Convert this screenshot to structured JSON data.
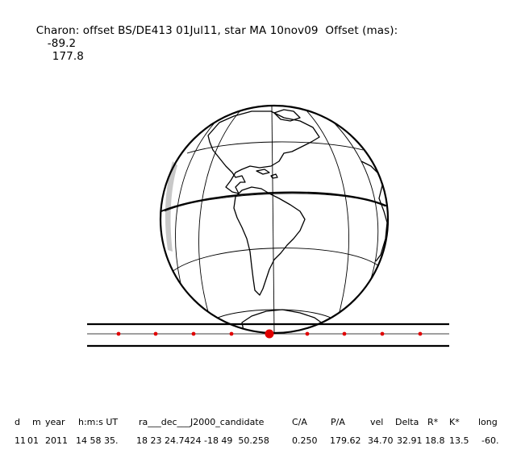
{
  "header": {
    "title": "Charon: offset BS/DE413 01Jul11, star MA 10nov09  Offset (mas):",
    "offset_ra": "-89.2",
    "offset_dec": "177.8"
  },
  "colors": {
    "ink": "#000000",
    "track": "#e00000",
    "limb_shade": "#c8c8c8"
  },
  "table": {
    "columns": [
      "d",
      "m",
      "year",
      "h:m:s UT",
      "ra___dec___J2000_candidate",
      "C/A",
      "P/A",
      "vel",
      "Delta",
      "R*",
      "K*",
      "long"
    ],
    "values": [
      "11",
      "01",
      "2011",
      "14 58 35.",
      "18 23 24.7424 -18 49  50.258",
      "0.250",
      "179.62",
      "34.70",
      "32.91",
      "18.8",
      "13.5",
      "-60."
    ]
  }
}
